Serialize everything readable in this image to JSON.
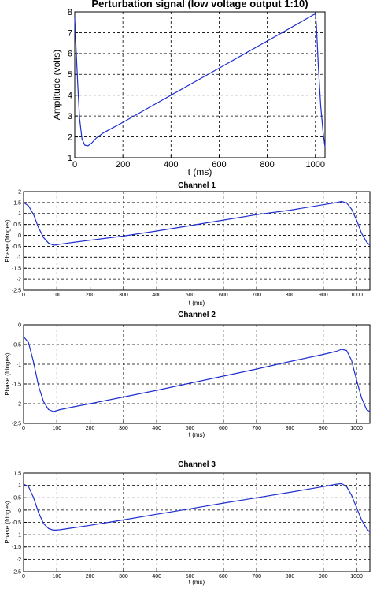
{
  "chart_data": [
    {
      "type": "line",
      "title": "Perturbation signal (low voltage output 1:10)",
      "xlabel": "t (ms)",
      "ylabel": "Amplitude (volts)",
      "xlim": [
        0,
        1040
      ],
      "ylim": [
        1,
        8
      ],
      "xticks": [
        "0",
        "200",
        "400",
        "600",
        "800",
        "1000"
      ],
      "yticks": [
        "1",
        "2",
        "3",
        "4",
        "5",
        "6",
        "7",
        "8"
      ],
      "grid": true,
      "line_color": "#1f2fd0",
      "series": [
        {
          "x": [
            0,
            5,
            12,
            20,
            30,
            42,
            55,
            70,
            90,
            120,
            160,
            200,
            300,
            400,
            500,
            600,
            700,
            800,
            900,
            990,
            1000,
            1004,
            1012,
            1022,
            1032,
            1040
          ],
          "values": [
            7.7,
            6.4,
            4.6,
            2.9,
            1.9,
            1.6,
            1.57,
            1.7,
            1.95,
            2.2,
            2.45,
            2.7,
            3.35,
            4.0,
            4.65,
            5.3,
            5.95,
            6.6,
            7.25,
            7.85,
            7.9,
            7.4,
            5.5,
            3.5,
            2.2,
            1.5
          ]
        }
      ]
    },
    {
      "type": "line",
      "title": "Channel 1",
      "xlabel": "t (ms)",
      "ylabel": "Phase (fringes)",
      "xlim": [
        0,
        1040
      ],
      "ylim": [
        -2.5,
        2
      ],
      "xticks": [
        "0",
        "100",
        "200",
        "300",
        "400",
        "500",
        "600",
        "700",
        "800",
        "900",
        "1000"
      ],
      "yticks": [
        "-2.5",
        "-2",
        "-1.5",
        "-1",
        "-0.5",
        "0",
        "0.5",
        "1",
        "1.5",
        "2"
      ],
      "grid": true,
      "line_color": "#1f2fd0",
      "series": [
        {
          "x": [
            0,
            15,
            30,
            45,
            60,
            75,
            90,
            110,
            150,
            200,
            300,
            400,
            500,
            600,
            700,
            800,
            900,
            940,
            955,
            970,
            985,
            1000,
            1015,
            1030,
            1040
          ],
          "values": [
            1.5,
            1.35,
            0.95,
            0.35,
            -0.1,
            -0.35,
            -0.45,
            -0.4,
            -0.32,
            -0.22,
            -0.03,
            0.2,
            0.45,
            0.7,
            0.95,
            1.15,
            1.4,
            1.5,
            1.55,
            1.48,
            1.2,
            0.7,
            0.1,
            -0.3,
            -0.45
          ]
        }
      ]
    },
    {
      "type": "line",
      "title": "Channel 2",
      "xlabel": "t (ms)",
      "ylabel": "Phase (fringes)",
      "xlim": [
        0,
        1040
      ],
      "ylim": [
        -2.5,
        0
      ],
      "xticks": [
        "0",
        "100",
        "200",
        "300",
        "400",
        "500",
        "600",
        "700",
        "800",
        "900",
        "1000"
      ],
      "yticks": [
        "-2.5",
        "-2",
        "-1.5",
        "-1",
        "-0.5",
        "0"
      ],
      "grid": true,
      "line_color": "#1f2fd0",
      "series": [
        {
          "x": [
            0,
            15,
            30,
            45,
            60,
            75,
            90,
            110,
            150,
            200,
            300,
            400,
            500,
            600,
            700,
            800,
            900,
            940,
            955,
            970,
            985,
            1000,
            1015,
            1030,
            1040
          ],
          "values": [
            -0.3,
            -0.45,
            -0.95,
            -1.55,
            -1.95,
            -2.15,
            -2.2,
            -2.15,
            -2.08,
            -2.0,
            -1.83,
            -1.66,
            -1.48,
            -1.3,
            -1.12,
            -0.93,
            -0.75,
            -0.67,
            -0.62,
            -0.65,
            -0.9,
            -1.4,
            -1.85,
            -2.15,
            -2.2
          ]
        }
      ]
    },
    {
      "type": "line",
      "title": "Channel 3",
      "xlabel": "t (ms)",
      "ylabel": "Phase (fringes)",
      "xlim": [
        0,
        1040
      ],
      "ylim": [
        -2.5,
        1.5
      ],
      "xticks": [
        "0",
        "100",
        "200",
        "300",
        "400",
        "500",
        "600",
        "700",
        "800",
        "900",
        "1000"
      ],
      "yticks": [
        "-2.5",
        "-2",
        "-1.5",
        "-1",
        "-0.5",
        "0",
        "0.5",
        "1",
        "1.5"
      ],
      "grid": true,
      "line_color": "#1f2fd0",
      "series": [
        {
          "x": [
            0,
            15,
            30,
            45,
            60,
            75,
            90,
            110,
            150,
            200,
            300,
            400,
            500,
            600,
            700,
            800,
            900,
            940,
            955,
            970,
            985,
            1000,
            1015,
            1030,
            1040
          ],
          "values": [
            1.05,
            0.95,
            0.5,
            -0.1,
            -0.55,
            -0.75,
            -0.82,
            -0.8,
            -0.72,
            -0.62,
            -0.4,
            -0.17,
            0.05,
            0.28,
            0.5,
            0.72,
            0.95,
            1.05,
            1.07,
            0.95,
            0.6,
            0.1,
            -0.4,
            -0.75,
            -0.9
          ]
        }
      ]
    }
  ]
}
